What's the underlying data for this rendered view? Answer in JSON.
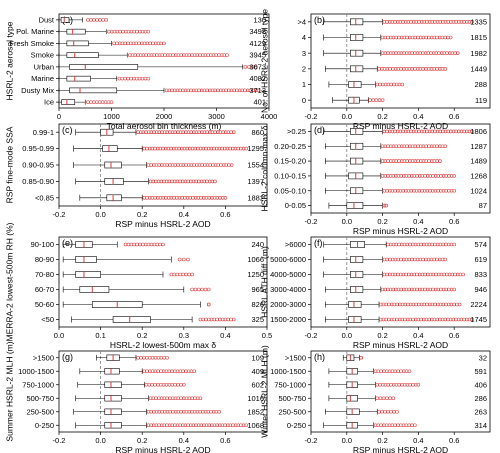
{
  "chart_data": [
    {
      "panel": "(a)",
      "type": "box",
      "orientation": "horizontal",
      "xlabel": "Total aerosol bin thickness (m)",
      "ylabel": "HSRL-2 aerosol type",
      "xlim": [
        0,
        4000
      ],
      "xticks": [
        0,
        1000,
        2000,
        3000,
        4000
      ],
      "ref_line": null,
      "categories": [
        "Dust",
        "Pol. Marine",
        "Fresh Smoke",
        "Smoke",
        "Urban",
        "Marine",
        "Dusty Mix",
        "Ice"
      ],
      "counts": [
        130,
        3498,
        4129,
        3945,
        3673,
        4082,
        3713,
        401
      ],
      "boxes": [
        {
          "wlo": 0,
          "q1": 40,
          "med": 100,
          "q3": 190,
          "whi": 450,
          "out": [
            550,
            900
          ]
        },
        {
          "wlo": 0,
          "q1": 150,
          "med": 260,
          "q3": 500,
          "whi": 900,
          "out": [
            950,
            1700
          ]
        },
        {
          "wlo": 0,
          "q1": 150,
          "med": 280,
          "q3": 560,
          "whi": 1000,
          "out": [
            1050,
            2000
          ]
        },
        {
          "wlo": 0,
          "q1": 150,
          "med": 300,
          "q3": 750,
          "whi": 1300,
          "out": [
            1350,
            3200
          ]
        },
        {
          "wlo": 0,
          "q1": 200,
          "med": 500,
          "q3": 1500,
          "whi": 3500,
          "out": [
            3550,
            3750
          ]
        },
        {
          "wlo": 0,
          "q1": 150,
          "med": 300,
          "q3": 600,
          "whi": 1100,
          "out": [
            1150,
            1700
          ]
        },
        {
          "wlo": 0,
          "q1": 200,
          "med": 400,
          "q3": 1100,
          "whi": 2000,
          "out": [
            2050,
            3800
          ]
        },
        {
          "wlo": 0,
          "q1": 50,
          "med": 150,
          "q3": 300,
          "whi": 500,
          "out": [
            550,
            1000
          ]
        }
      ]
    },
    {
      "panel": "(b)",
      "type": "box",
      "orientation": "horizontal",
      "xlabel": "RSP minus HSRL-2 AOD",
      "ylabel": "No. of HSRL-2 aerosol type",
      "xlim": [
        -0.2,
        0.8
      ],
      "xticks": [
        -0.2,
        0.0,
        0.2,
        0.4,
        0.6
      ],
      "ref_line": 0,
      "categories": [
        ">4",
        "4",
        "3",
        "2",
        "1",
        "0"
      ],
      "counts": [
        1335,
        1815,
        1982,
        1449,
        288,
        119
      ],
      "boxes": [
        {
          "wlo": -0.13,
          "q1": 0.02,
          "med": 0.05,
          "q3": 0.09,
          "whi": 0.2,
          "out": [
            0.21,
            0.7
          ]
        },
        {
          "wlo": -0.13,
          "q1": 0.02,
          "med": 0.05,
          "q3": 0.09,
          "whi": 0.19,
          "out": [
            0.2,
            0.58
          ]
        },
        {
          "wlo": -0.13,
          "q1": 0.02,
          "med": 0.05,
          "q3": 0.09,
          "whi": 0.19,
          "out": [
            0.2,
            0.62
          ]
        },
        {
          "wlo": -0.12,
          "q1": 0.02,
          "med": 0.05,
          "q3": 0.09,
          "whi": 0.17,
          "out": [
            0.18,
            0.55
          ]
        },
        {
          "wlo": -0.1,
          "q1": 0.01,
          "med": 0.04,
          "q3": 0.08,
          "whi": 0.16,
          "out": [
            0.17,
            0.31
          ]
        },
        {
          "wlo": -0.08,
          "q1": 0.01,
          "med": 0.04,
          "q3": 0.07,
          "whi": 0.12,
          "out": [
            0.13,
            0.2
          ]
        }
      ]
    },
    {
      "panel": "(c)",
      "type": "box",
      "orientation": "horizontal",
      "xlabel": "RSP minus HSRL-2 AOD",
      "ylabel": "RSP fine-mode SSA",
      "xlim": [
        -0.2,
        0.8
      ],
      "xticks": [
        -0.2,
        0.0,
        0.2,
        0.4,
        0.6
      ],
      "ref_line": 0,
      "categories": [
        "0.99-1",
        "0.95-0.99",
        "0.90-0.95",
        "0.85-0.90",
        "<0.85"
      ],
      "counts": [
        860,
        1295,
        1554,
        1397,
        1882
      ],
      "boxes": [
        {
          "wlo": -0.12,
          "q1": 0.0,
          "med": 0.03,
          "q3": 0.06,
          "whi": 0.17,
          "out": [
            0.18,
            0.64
          ]
        },
        {
          "wlo": -0.13,
          "q1": 0.01,
          "med": 0.04,
          "q3": 0.08,
          "whi": 0.2,
          "out": [
            0.21,
            0.7
          ]
        },
        {
          "wlo": -0.13,
          "q1": 0.02,
          "med": 0.05,
          "q3": 0.1,
          "whi": 0.22,
          "out": [
            0.23,
            0.63
          ]
        },
        {
          "wlo": -0.12,
          "q1": 0.02,
          "med": 0.06,
          "q3": 0.11,
          "whi": 0.23,
          "out": [
            0.24,
            0.55
          ]
        },
        {
          "wlo": -0.1,
          "q1": 0.03,
          "med": 0.06,
          "q3": 0.1,
          "whi": 0.2,
          "out": [
            0.21,
            0.6
          ]
        }
      ]
    },
    {
      "panel": "(d)",
      "type": "box",
      "orientation": "horizontal",
      "xlabel": "RSP minus HSRL-2 AOD",
      "ylabel": "HSRL-2 column-max δ",
      "xlim": [
        -0.2,
        0.8
      ],
      "xticks": [
        -0.2,
        0.0,
        0.2,
        0.4,
        0.6
      ],
      "ref_line": 0,
      "categories": [
        ">0.25",
        "0.20-0.25",
        "0.15-0.20",
        "0.10-0.15",
        "0.05-0.10",
        "0-0.05"
      ],
      "counts": [
        1806,
        1287,
        1489,
        1268,
        1024,
        87
      ],
      "boxes": [
        {
          "wlo": -0.13,
          "q1": 0.02,
          "med": 0.05,
          "q3": 0.09,
          "whi": 0.2,
          "out": [
            0.21,
            0.7
          ]
        },
        {
          "wlo": -0.12,
          "q1": 0.02,
          "med": 0.05,
          "q3": 0.09,
          "whi": 0.19,
          "out": [
            0.2,
            0.55
          ]
        },
        {
          "wlo": -0.12,
          "q1": 0.02,
          "med": 0.05,
          "q3": 0.09,
          "whi": 0.19,
          "out": [
            0.2,
            0.52
          ]
        },
        {
          "wlo": -0.12,
          "q1": 0.01,
          "med": 0.05,
          "q3": 0.09,
          "whi": 0.19,
          "out": [
            0.2,
            0.6
          ]
        },
        {
          "wlo": -0.12,
          "q1": 0.02,
          "med": 0.05,
          "q3": 0.09,
          "whi": 0.2,
          "out": [
            0.21,
            0.6
          ]
        },
        {
          "wlo": -0.1,
          "q1": 0.0,
          "med": 0.04,
          "q3": 0.09,
          "whi": 0.2,
          "out": [
            0.21,
            0.22
          ]
        }
      ]
    },
    {
      "panel": "(e)",
      "type": "box",
      "orientation": "horizontal",
      "xlabel": "HSRL-2 lowest-500m max δ",
      "ylabel": "MERRA-2 lowest-500m RH (%)",
      "xlim": [
        0,
        0.5
      ],
      "xticks": [
        0.0,
        0.1,
        0.2,
        0.3,
        0.4,
        0.5
      ],
      "ref_line": null,
      "categories": [
        "90-100",
        "80-90",
        "70-80",
        "60-70",
        "50-60",
        "<50"
      ],
      "counts": [
        240,
        1066,
        1250,
        965,
        826,
        325
      ],
      "boxes": [
        {
          "wlo": 0.01,
          "q1": 0.04,
          "med": 0.06,
          "q3": 0.08,
          "whi": 0.14,
          "out": [
            0.16,
            0.25
          ]
        },
        {
          "wlo": 0.01,
          "q1": 0.04,
          "med": 0.06,
          "q3": 0.09,
          "whi": 0.27,
          "out": [
            0.29,
            0.31
          ]
        },
        {
          "wlo": 0.01,
          "q1": 0.04,
          "med": 0.06,
          "q3": 0.1,
          "whi": 0.25,
          "out": [
            0.27,
            0.32
          ]
        },
        {
          "wlo": 0.01,
          "q1": 0.05,
          "med": 0.08,
          "q3": 0.12,
          "whi": 0.3,
          "out": [
            0.32,
            0.36
          ]
        },
        {
          "wlo": 0.01,
          "q1": 0.08,
          "med": 0.14,
          "q3": 0.2,
          "whi": 0.34,
          "out": [
            0.36,
            0.36
          ]
        },
        {
          "wlo": 0.03,
          "q1": 0.13,
          "med": 0.17,
          "q3": 0.22,
          "whi": 0.32,
          "out": [
            0.34,
            0.42
          ]
        }
      ]
    },
    {
      "panel": "(f)",
      "type": "box",
      "orientation": "horizontal",
      "xlabel": "RSP minus HSRL-2 AOD",
      "ylabel": "HSRL ATH diff. (m)",
      "xlim": [
        -0.2,
        0.8
      ],
      "xticks": [
        -0.2,
        0.0,
        0.2,
        0.4,
        0.6
      ],
      "ref_line": 0,
      "categories": [
        ">6000",
        "5000-6000",
        "4000-5000",
        "3000-4000",
        "2000-3000",
        "1500-2000"
      ],
      "counts": [
        574,
        619,
        833,
        946,
        2224,
        1745
      ],
      "boxes": [
        {
          "wlo": -0.13,
          "q1": 0.02,
          "med": 0.06,
          "q3": 0.1,
          "whi": 0.22,
          "out": [
            0.23,
            0.6
          ]
        },
        {
          "wlo": -0.13,
          "q1": 0.02,
          "med": 0.05,
          "q3": 0.09,
          "whi": 0.2,
          "out": [
            0.21,
            0.55
          ]
        },
        {
          "wlo": -0.13,
          "q1": 0.02,
          "med": 0.05,
          "q3": 0.09,
          "whi": 0.2,
          "out": [
            0.21,
            0.65
          ]
        },
        {
          "wlo": -0.12,
          "q1": 0.02,
          "med": 0.05,
          "q3": 0.09,
          "whi": 0.19,
          "out": [
            0.2,
            0.6
          ]
        },
        {
          "wlo": -0.12,
          "q1": 0.01,
          "med": 0.04,
          "q3": 0.08,
          "whi": 0.18,
          "out": [
            0.19,
            0.63
          ]
        },
        {
          "wlo": -0.12,
          "q1": 0.01,
          "med": 0.04,
          "q3": 0.08,
          "whi": 0.18,
          "out": [
            0.19,
            0.7
          ]
        }
      ]
    },
    {
      "panel": "(g)",
      "type": "box",
      "orientation": "horizontal",
      "xlabel": "RSP minus HSRL-2 AOD",
      "ylabel": "Summer HSRL-2 MLH (m)",
      "xlim": [
        -0.2,
        0.8
      ],
      "xticks": [
        -0.2,
        0.0,
        0.2,
        0.4,
        0.6
      ],
      "ref_line": 0,
      "categories": [
        ">1500",
        "1000-1500",
        "750-1000",
        "500-750",
        "250-500",
        "0-250"
      ],
      "counts": [
        109,
        409,
        602,
        1016,
        1852,
        1068
      ],
      "boxes": [
        {
          "wlo": -0.02,
          "q1": 0.03,
          "med": 0.06,
          "q3": 0.09,
          "whi": 0.17,
          "out": [
            0.18,
            0.32
          ]
        },
        {
          "wlo": -0.1,
          "q1": 0.02,
          "med": 0.05,
          "q3": 0.09,
          "whi": 0.2,
          "out": [
            0.21,
            0.45
          ]
        },
        {
          "wlo": -0.11,
          "q1": 0.02,
          "med": 0.05,
          "q3": 0.1,
          "whi": 0.21,
          "out": [
            0.22,
            0.4
          ]
        },
        {
          "wlo": -0.12,
          "q1": 0.02,
          "med": 0.05,
          "q3": 0.1,
          "whi": 0.23,
          "out": [
            0.24,
            0.48
          ]
        },
        {
          "wlo": -0.13,
          "q1": 0.02,
          "med": 0.05,
          "q3": 0.1,
          "whi": 0.22,
          "out": [
            0.23,
            0.57
          ]
        },
        {
          "wlo": -0.12,
          "q1": 0.02,
          "med": 0.05,
          "q3": 0.1,
          "whi": 0.22,
          "out": [
            0.23,
            0.7
          ]
        }
      ]
    },
    {
      "panel": "(h)",
      "type": "box",
      "orientation": "horizontal",
      "xlabel": "RSP minus HSRL-2 AOD",
      "ylabel": "Winter HSRL-2 MLH (m)",
      "xlim": [
        -0.2,
        0.8
      ],
      "xticks": [
        -0.2,
        0.0,
        0.2,
        0.4,
        0.6
      ],
      "ref_line": 0,
      "categories": [
        ">1500",
        "1000-1500",
        "750-1000",
        "500-750",
        "250-500",
        "0-250"
      ],
      "counts": [
        32,
        591,
        406,
        286,
        263,
        314
      ],
      "boxes": [
        {
          "wlo": -0.02,
          "q1": 0.0,
          "med": 0.02,
          "q3": 0.04,
          "whi": 0.07,
          "out": [
            0.08,
            0.08
          ]
        },
        {
          "wlo": -0.1,
          "q1": 0.0,
          "med": 0.03,
          "q3": 0.06,
          "whi": 0.15,
          "out": [
            0.16,
            0.35
          ]
        },
        {
          "wlo": -0.1,
          "q1": 0.0,
          "med": 0.03,
          "q3": 0.06,
          "whi": 0.16,
          "out": [
            0.17,
            0.4
          ]
        },
        {
          "wlo": -0.1,
          "q1": 0.0,
          "med": 0.02,
          "q3": 0.06,
          "whi": 0.16,
          "out": [
            0.17,
            0.26
          ]
        },
        {
          "wlo": -0.12,
          "q1": 0.0,
          "med": 0.03,
          "q3": 0.07,
          "whi": 0.17,
          "out": [
            0.18,
            0.28
          ]
        },
        {
          "wlo": -0.13,
          "q1": 0.0,
          "med": 0.03,
          "q3": 0.06,
          "whi": 0.15,
          "out": [
            0.16,
            0.38
          ]
        }
      ]
    }
  ],
  "colors": {
    "outlier": "#e0393b",
    "median": "#e0393b",
    "axis": "#000000",
    "ref_line": "#808080"
  }
}
